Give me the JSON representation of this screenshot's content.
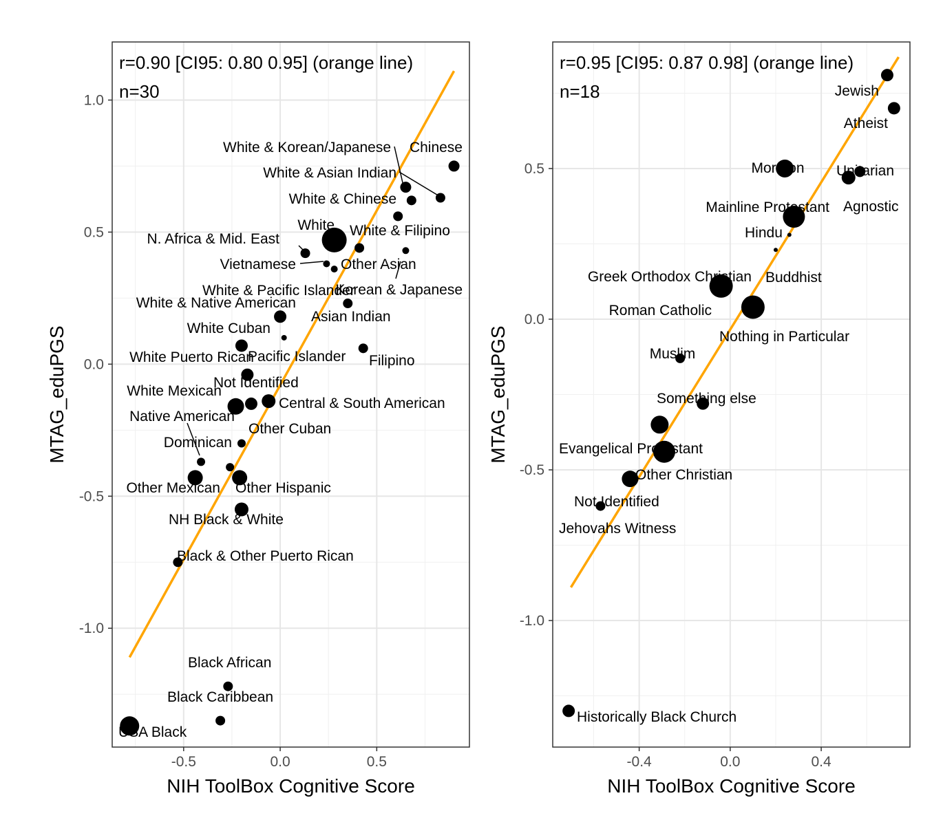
{
  "chart_data": [
    {
      "type": "scatter",
      "xlabel": "NIH ToolBox Cognitive Score",
      "ylabel": "MTAG_eduPGS",
      "annotation_line1": "r=0.90 [CI95: 0.80 0.95] (orange line)",
      "annotation_line2": "n=30",
      "xlim": [
        -0.87,
        0.98
      ],
      "ylim": [
        -1.45,
        1.22
      ],
      "x_ticks": [
        -0.5,
        0.0,
        0.5
      ],
      "x_tick_labels": [
        "-0.5",
        "0.0",
        "0.5"
      ],
      "y_ticks": [
        -1.0,
        -0.5,
        0.0,
        0.5,
        1.0
      ],
      "y_tick_labels": [
        "-1.0",
        "-0.5",
        "0.0",
        "0.5",
        "1.0"
      ],
      "grid": true,
      "fit_line": {
        "color": "#FFA500",
        "x": [
          -0.78,
          0.9
        ],
        "y": [
          -1.11,
          1.11
        ]
      },
      "points": [
        {
          "label": "Chinese",
          "x": 0.9,
          "y": 0.75,
          "size": 8
        },
        {
          "label": "White & Korean/Japanese",
          "x": 0.65,
          "y": 0.67,
          "size": 8
        },
        {
          "label": "White & Asian Indian",
          "x": 0.83,
          "y": 0.63,
          "size": 7
        },
        {
          "label": "White & Chinese",
          "x": 0.68,
          "y": 0.62,
          "size": 7
        },
        {
          "label": "White",
          "x": 0.28,
          "y": 0.47,
          "size": 18
        },
        {
          "label": "White & Filipino",
          "x": 0.61,
          "y": 0.56,
          "size": 7
        },
        {
          "label": "N. Africa & Mid. East",
          "x": 0.13,
          "y": 0.42,
          "size": 7
        },
        {
          "label": "Other Asian",
          "x": 0.41,
          "y": 0.44,
          "size": 7
        },
        {
          "label": "Korean & Japanese",
          "x": 0.65,
          "y": 0.43,
          "size": 5
        },
        {
          "label": "Vietnamese",
          "x": 0.24,
          "y": 0.38,
          "size": 5
        },
        {
          "label": "White & Pacific Islander",
          "x": 0.28,
          "y": 0.36,
          "size": 5
        },
        {
          "label": "Asian Indian",
          "x": 0.35,
          "y": 0.23,
          "size": 7
        },
        {
          "label": "White & Native American",
          "x": 0.0,
          "y": 0.18,
          "size": 9
        },
        {
          "label": "White Cuban",
          "x": 0.02,
          "y": 0.1,
          "size": 4
        },
        {
          "label": "Filipino",
          "x": 0.43,
          "y": 0.06,
          "size": 7
        },
        {
          "label": "Pacific Islander",
          "x": -0.2,
          "y": 0.07,
          "size": 9
        },
        {
          "label": "White Puerto Rican",
          "x": -0.17,
          "y": -0.04,
          "size": 9
        },
        {
          "label": "White Mexican",
          "x": -0.23,
          "y": -0.16,
          "size": 12
        },
        {
          "label": "Not Identified",
          "x": -0.15,
          "y": -0.15,
          "size": 9
        },
        {
          "label": "Central & South American",
          "x": -0.06,
          "y": -0.14,
          "size": 10
        },
        {
          "label": "Other Cuban",
          "x": -0.2,
          "y": -0.3,
          "size": 6
        },
        {
          "label": "Native American",
          "x": -0.41,
          "y": -0.37,
          "size": 6
        },
        {
          "label": "Dominican",
          "x": -0.26,
          "y": -0.39,
          "size": 6
        },
        {
          "label": "Other Mexican",
          "x": -0.44,
          "y": -0.43,
          "size": 11
        },
        {
          "label": "Other Hispanic",
          "x": -0.21,
          "y": -0.43,
          "size": 11
        },
        {
          "label": "NH Black & White",
          "x": -0.2,
          "y": -0.55,
          "size": 10
        },
        {
          "label": "Black & Other Puerto Rican",
          "x": -0.53,
          "y": -0.75,
          "size": 7
        },
        {
          "label": "Black African",
          "x": -0.27,
          "y": -1.22,
          "size": 7
        },
        {
          "label": "Black Caribbean",
          "x": -0.31,
          "y": -1.35,
          "size": 7
        },
        {
          "label": "USA Black",
          "x": -0.78,
          "y": -1.37,
          "size": 14
        }
      ]
    },
    {
      "type": "scatter",
      "xlabel": "NIH ToolBox Cognitive Score",
      "ylabel": "MTAG_eduPGS",
      "annotation_line1": "r=0.95 [CI95: 0.87 0.98] (orange line)",
      "annotation_line2": "n=18",
      "xlim": [
        -0.78,
        0.79
      ],
      "ylim": [
        -1.42,
        0.92
      ],
      "x_ticks": [
        -0.4,
        0.0,
        0.4
      ],
      "x_tick_labels": [
        "-0.4",
        "0.0",
        "0.4"
      ],
      "y_ticks": [
        -1.0,
        -0.5,
        0.0,
        0.5
      ],
      "y_tick_labels": [
        "-1.0",
        "-0.5",
        "0.0",
        "0.5"
      ],
      "grid": true,
      "fit_line": {
        "color": "#FFA500",
        "x": [
          -0.7,
          0.74
        ],
        "y": [
          -0.89,
          0.87
        ]
      },
      "points": [
        {
          "label": "Jewish",
          "x": 0.69,
          "y": 0.81,
          "size": 9
        },
        {
          "label": "Atheist",
          "x": 0.72,
          "y": 0.7,
          "size": 9
        },
        {
          "label": "Mormon",
          "x": 0.24,
          "y": 0.5,
          "size": 13
        },
        {
          "label": "Unitarian",
          "x": 0.57,
          "y": 0.49,
          "size": 8
        },
        {
          "label": "Agnostic",
          "x": 0.52,
          "y": 0.47,
          "size": 10
        },
        {
          "label": "Mainline Protestant",
          "x": 0.28,
          "y": 0.34,
          "size": 16
        },
        {
          "label": "Hindu",
          "x": 0.26,
          "y": 0.28,
          "size": 3
        },
        {
          "label": "Buddhist",
          "x": 0.2,
          "y": 0.23,
          "size": 3
        },
        {
          "label": "Greek Orthodox Christian",
          "x": -0.04,
          "y": 0.11,
          "size": 17
        },
        {
          "label": "Roman Catholic",
          "x": 0.1,
          "y": 0.04,
          "size": 17
        },
        {
          "label": "Nothing in Particular",
          "x": 0.1,
          "y": 0.04,
          "size": 0
        },
        {
          "label": "Muslim",
          "x": -0.22,
          "y": -0.13,
          "size": 7
        },
        {
          "label": "Something else",
          "x": -0.12,
          "y": -0.28,
          "size": 9
        },
        {
          "label": "Evangelical Protestant",
          "x": -0.31,
          "y": -0.35,
          "size": 13
        },
        {
          "label": "Other Christian",
          "x": -0.29,
          "y": -0.44,
          "size": 16
        },
        {
          "label": "Not Identified",
          "x": -0.44,
          "y": -0.53,
          "size": 12
        },
        {
          "label": "Jehovahs Witness",
          "x": -0.57,
          "y": -0.62,
          "size": 7
        },
        {
          "label": "Historically Black Church",
          "x": -0.71,
          "y": -1.3,
          "size": 9
        }
      ]
    }
  ]
}
